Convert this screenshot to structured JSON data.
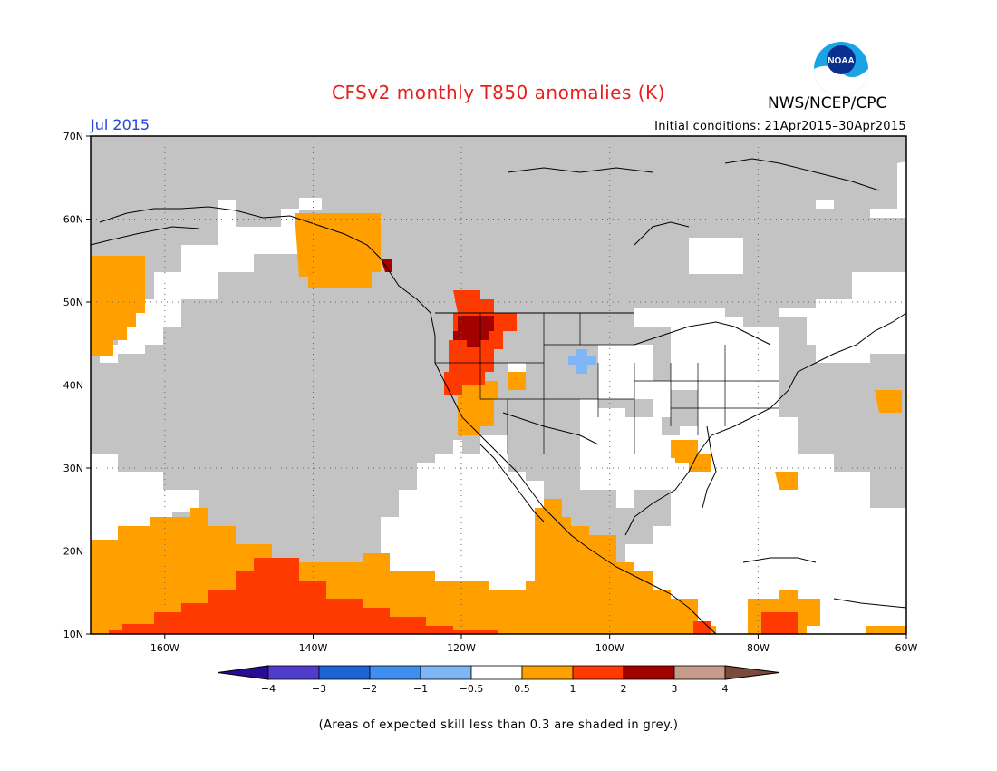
{
  "title": "CFSv2 monthly T850 anomalies (K)",
  "org": "NWS/NCEP/CPC",
  "logo_text": "NOAA",
  "month": "Jul 2015",
  "initial_conditions": "Initial conditions: 21Apr2015–30Apr2015",
  "map": {
    "lon_range": [
      -170,
      -60
    ],
    "lat_range": [
      10,
      70
    ],
    "lon_ticks": [
      "160W",
      "140W",
      "120W",
      "100W",
      "80W",
      "60W"
    ],
    "lat_ticks": [
      "10N",
      "20N",
      "30N",
      "40N",
      "50N",
      "60N",
      "70N"
    ],
    "colors": {
      "grey": "#c3c3c3",
      "c05": "#ff9f00",
      "c1": "#ff3a00",
      "c2": "#a30000",
      "neg05": "#7fb6f5"
    }
  },
  "colorbar": {
    "levels": [
      "−4",
      "−3",
      "−2",
      "−1",
      "−0.5",
      "0.5",
      "1",
      "2",
      "3",
      "4"
    ],
    "colors": [
      "#2a0b96",
      "#4f3ccd",
      "#1c63d4",
      "#3e8ff0",
      "#7fb6f5",
      "#ffffff",
      "#ff9f00",
      "#ff3a00",
      "#a30000",
      "#c79b8a",
      "#7a4a3a"
    ]
  },
  "footnote": "(Areas of expected skill less than 0.3 are shaded in grey.)"
}
